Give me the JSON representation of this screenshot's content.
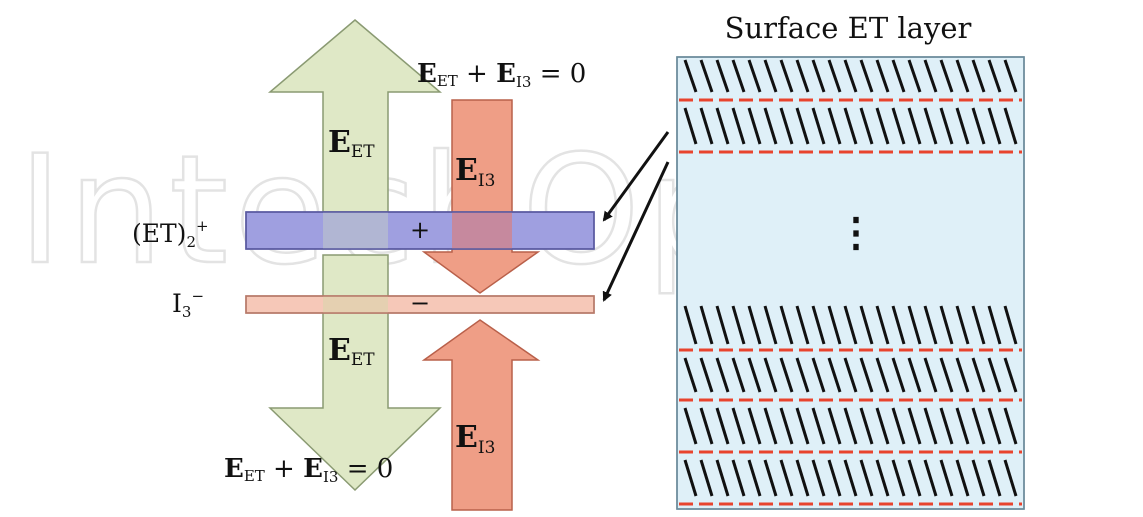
{
  "diagram": {
    "title": "Surface ET layer",
    "equation": {
      "E": "E",
      "sub_et": "ET",
      "plus": " + ",
      "sub_i": "I",
      "sub_3": "3",
      "equals": " = 0"
    },
    "arrow_labels": {
      "e_main": "E",
      "et_sub": "ET",
      "i_sub": "I",
      "three_sub": "3"
    },
    "cation_label": {
      "main": "(ET)",
      "sub": "2",
      "sup": "+"
    },
    "anion_label": {
      "main": "I",
      "sub": "3",
      "sup": "−"
    },
    "charge_plus": "+",
    "charge_minus": "−",
    "ellipsis_description": "⋮",
    "watermark": "IntechOpen",
    "colors": {
      "green_arrow": "#dfe8c6",
      "red_arrow": "#ef9e86",
      "blue_bar": "#9f9fe0",
      "pink_bar": "#f6c8b8",
      "panel_fill": "#dff0f8",
      "dash_red": "#e8442e",
      "overlap": "#c8889a"
    }
  }
}
